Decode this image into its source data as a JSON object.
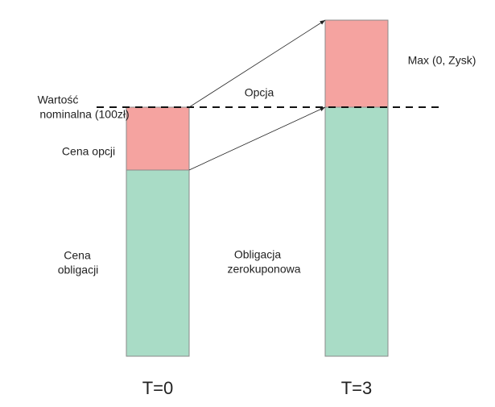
{
  "labels": {
    "face_value": [
      "Wartość",
      "nominalna (100zł)"
    ],
    "option_price": "Cena opcji",
    "bond_price": [
      "Cena",
      "obligacji"
    ],
    "option": "Opcja",
    "max_payoff": "Max (0, Zysk)",
    "zero_coupon_bond": [
      "Obligacja",
      "zerokuponowa"
    ],
    "t0": "T=0",
    "t3": "T=3"
  }
}
